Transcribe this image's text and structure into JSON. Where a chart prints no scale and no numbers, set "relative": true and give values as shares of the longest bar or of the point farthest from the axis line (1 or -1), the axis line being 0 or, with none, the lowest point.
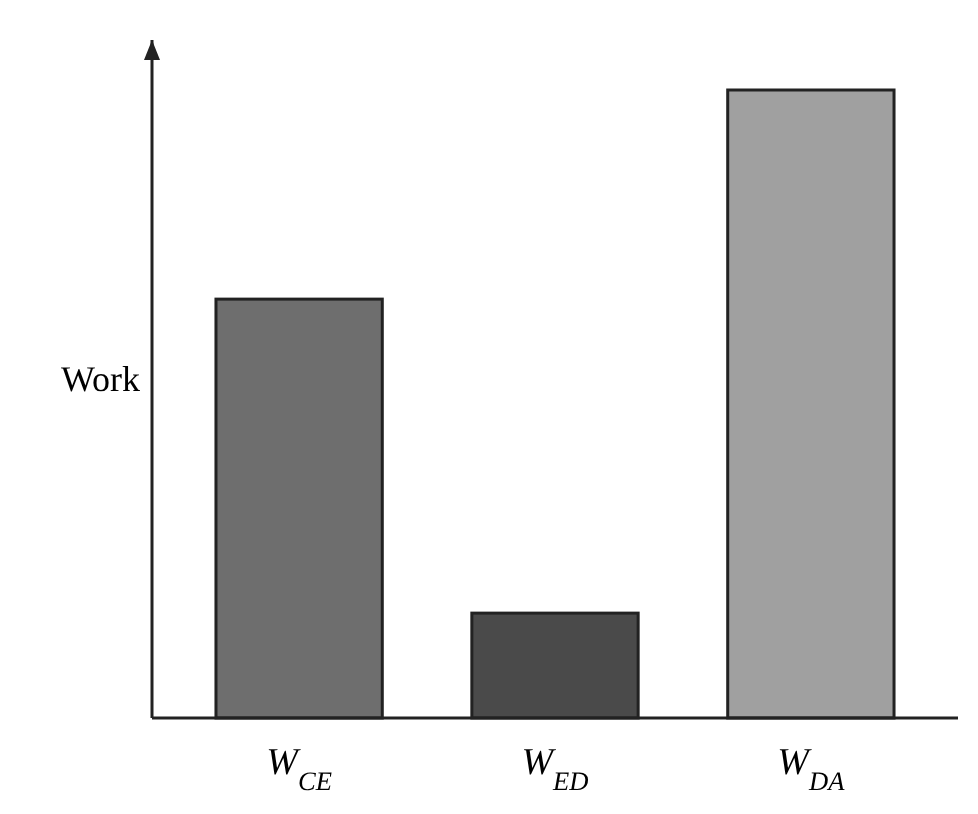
{
  "chart_data": {
    "type": "bar",
    "relative": true,
    "ylabel": "Work",
    "categories": [
      "W$_{CE}$",
      "W$_{ED}$",
      "W$_{DA}$"
    ],
    "values": [
      0.667,
      0.167,
      1
    ],
    "colors": [
      "#6e6e6e",
      "#4a4a4a",
      "#a0a0a0"
    ]
  }
}
